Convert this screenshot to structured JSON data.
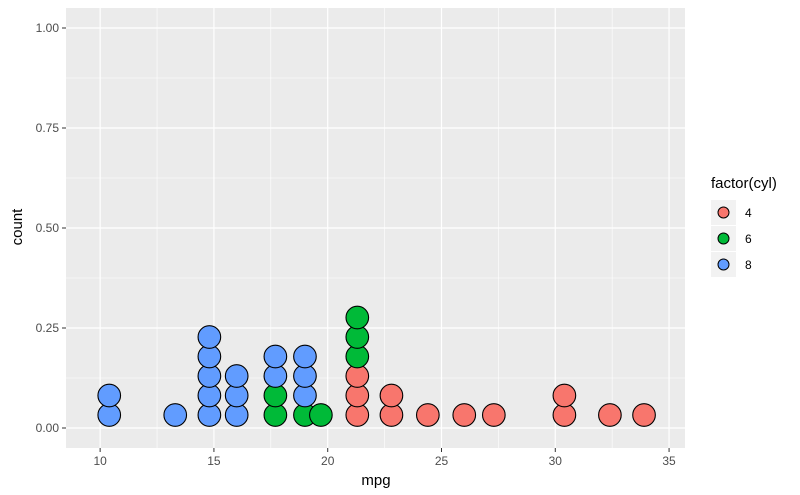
{
  "chart_data": {
    "type": "dotplot",
    "xlabel": "mpg",
    "ylabel": "count",
    "xlim": [
      8.5,
      35.7
    ],
    "ylim": [
      -0.05,
      1.05
    ],
    "x_ticks": [
      10,
      15,
      20,
      25,
      30,
      35
    ],
    "y_ticks": [
      0.0,
      0.25,
      0.5,
      0.75,
      1.0
    ],
    "y_tick_labels": [
      "0.00",
      "0.25",
      "0.50",
      "0.75",
      "1.00"
    ],
    "grid": true,
    "legend": {
      "title": "factor(cyl)",
      "position": "right",
      "entries": [
        {
          "label": "4",
          "color": "#F8766D"
        },
        {
          "label": "6",
          "color": "#00BA38"
        },
        {
          "label": "8",
          "color": "#619CFF"
        }
      ]
    },
    "series": [
      {
        "name": "4",
        "color": "#F8766D",
        "stacks": [
          {
            "x": 21.3,
            "count": 3
          },
          {
            "x": 22.8,
            "count": 2
          },
          {
            "x": 24.4,
            "count": 1
          },
          {
            "x": 26.0,
            "count": 1
          },
          {
            "x": 27.3,
            "count": 1
          },
          {
            "x": 30.4,
            "count": 2
          },
          {
            "x": 32.4,
            "count": 1
          },
          {
            "x": 33.9,
            "count": 1
          }
        ]
      },
      {
        "name": "6",
        "color": "#00BA38",
        "stacks": [
          {
            "x": 17.7,
            "count": 2
          },
          {
            "x": 19.0,
            "count": 1
          },
          {
            "x": 19.7,
            "count": 1
          },
          {
            "x": 21.3,
            "count": 3
          }
        ]
      },
      {
        "name": "8",
        "color": "#619CFF",
        "stacks": [
          {
            "x": 10.4,
            "count": 2
          },
          {
            "x": 13.3,
            "count": 1
          },
          {
            "x": 14.8,
            "count": 5
          },
          {
            "x": 16.0,
            "count": 3
          },
          {
            "x": 17.7,
            "count": 2
          },
          {
            "x": 19.0,
            "count": 3
          }
        ]
      }
    ]
  }
}
